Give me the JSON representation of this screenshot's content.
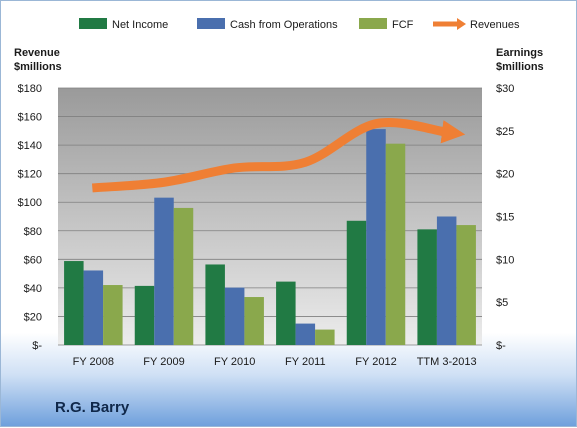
{
  "company_label": "R.G. Barry",
  "chart_data": {
    "type": "bar",
    "categories": [
      "FY 2008",
      "FY 2009",
      "FY 2010",
      "FY 2011",
      "FY 2012",
      "TTM 3-2013"
    ],
    "left_axis_title": [
      "Revenue",
      "$millions"
    ],
    "right_axis_title": [
      "Earnings",
      "$millions"
    ],
    "left_ticks": [
      "$-",
      "$20",
      "$40",
      "$60",
      "$80",
      "$100",
      "$120",
      "$140",
      "$160",
      "$180"
    ],
    "right_ticks": [
      "$-",
      "$5",
      "$10",
      "$15",
      "$20",
      "$25",
      "$30"
    ],
    "ylim_left": [
      0,
      180
    ],
    "ylim_right": [
      0,
      30
    ],
    "series": [
      {
        "name": "Net Income",
        "axis": "right",
        "color": "#217a44",
        "values": [
          9.8,
          6.9,
          9.4,
          7.4,
          14.5,
          13.5
        ]
      },
      {
        "name": "Cash from Operations",
        "axis": "right",
        "color": "#4a6fae",
        "values": [
          8.7,
          17.2,
          6.7,
          2.5,
          25.2,
          15.0
        ]
      },
      {
        "name": "FCF",
        "axis": "right",
        "color": "#8aa84c",
        "values": [
          7.0,
          16.0,
          5.6,
          1.8,
          23.5,
          14.0
        ]
      },
      {
        "name": "Revenues",
        "axis": "left",
        "color": "#ef7f34",
        "type": "line",
        "values": [
          110,
          114,
          124,
          128,
          155,
          149
        ]
      }
    ],
    "legend_position": "top",
    "grid": true
  }
}
